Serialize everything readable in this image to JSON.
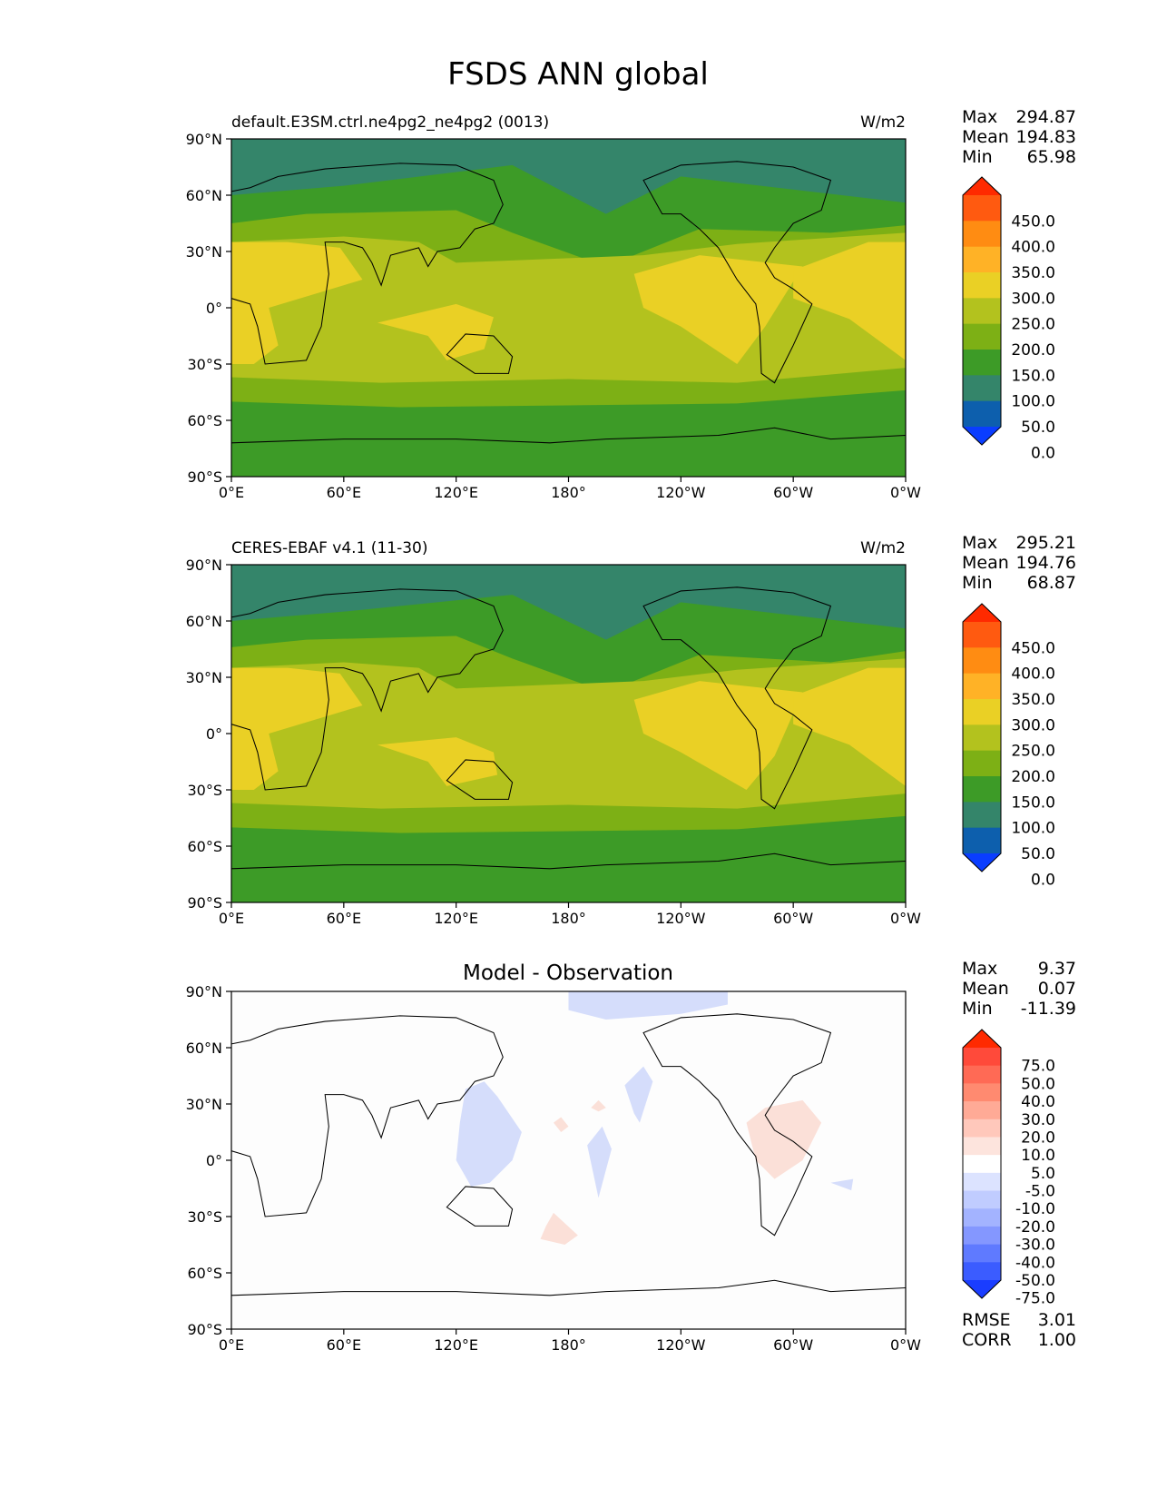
{
  "title": "FSDS ANN global",
  "panels": [
    {
      "key": "test",
      "left_title": "default.E3SM.ctrl.ne4pg2_ne4pg2 (0013)",
      "center_title": "",
      "units": "W/m2",
      "stats": {
        "max_label": "Max",
        "max": "294.87",
        "mean_label": "Mean",
        "mean": "194.83",
        "min_label": "Min",
        "min": "65.98"
      },
      "colorbar": {
        "labels": [
          "450.0",
          "400.0",
          "350.0",
          "300.0",
          "250.0",
          "200.0",
          "150.0",
          "100.0",
          "50.0",
          "0.0"
        ],
        "colors": [
          "#ff2a00",
          "#ff5a10",
          "#ff8c12",
          "#ffb226",
          "#ead025",
          "#b3c21e",
          "#7db015",
          "#3d9b27",
          "#34856a",
          "#0d5fad",
          "#0a3dff"
        ]
      }
    },
    {
      "key": "ref",
      "left_title": "CERES-EBAF v4.1 (11-30)",
      "center_title": "",
      "units": "W/m2",
      "stats": {
        "max_label": "Max",
        "max": "295.21",
        "mean_label": "Mean",
        "mean": "194.76",
        "min_label": "Min",
        "min": "68.87"
      },
      "colorbar": {
        "labels": [
          "450.0",
          "400.0",
          "350.0",
          "300.0",
          "250.0",
          "200.0",
          "150.0",
          "100.0",
          "50.0",
          "0.0"
        ],
        "colors": [
          "#ff2a00",
          "#ff5a10",
          "#ff8c12",
          "#ffb226",
          "#ead025",
          "#b3c21e",
          "#7db015",
          "#3d9b27",
          "#34856a",
          "#0d5fad",
          "#0a3dff"
        ]
      }
    },
    {
      "key": "diff",
      "left_title": "",
      "center_title": "Model - Observation",
      "units": "",
      "stats": {
        "max_label": "Max",
        "max": "9.37",
        "mean_label": "Mean",
        "mean": "0.07",
        "min_label": "Min",
        "min": "-11.39"
      },
      "colorbar": {
        "labels": [
          "75.0",
          "50.0",
          "40.0",
          "30.0",
          "20.0",
          "10.0",
          "5.0",
          "-5.0",
          "-10.0",
          "-20.0",
          "-30.0",
          "-40.0",
          "-50.0",
          "-75.0"
        ],
        "colors": [
          "#ff2a00",
          "#ff4a3a",
          "#ff6a55",
          "#ff8a70",
          "#ffaa96",
          "#ffc8bb",
          "#fde4dd",
          "#ffffff",
          "#dce3ff",
          "#c0ccff",
          "#a3b3ff",
          "#8497ff",
          "#5f7aff",
          "#3b5cff",
          "#1a3dff"
        ]
      },
      "rmse_label": "RMSE",
      "rmse": "3.01",
      "corr_label": "CORR",
      "corr": "1.00"
    }
  ],
  "axes": {
    "x_ticks": [
      "0°E",
      "60°E",
      "120°E",
      "180°",
      "120°W",
      "60°W",
      "0°W"
    ],
    "y_ticks": [
      "90°N",
      "60°N",
      "30°N",
      "0°",
      "30°S",
      "60°S",
      "90°S"
    ]
  }
}
